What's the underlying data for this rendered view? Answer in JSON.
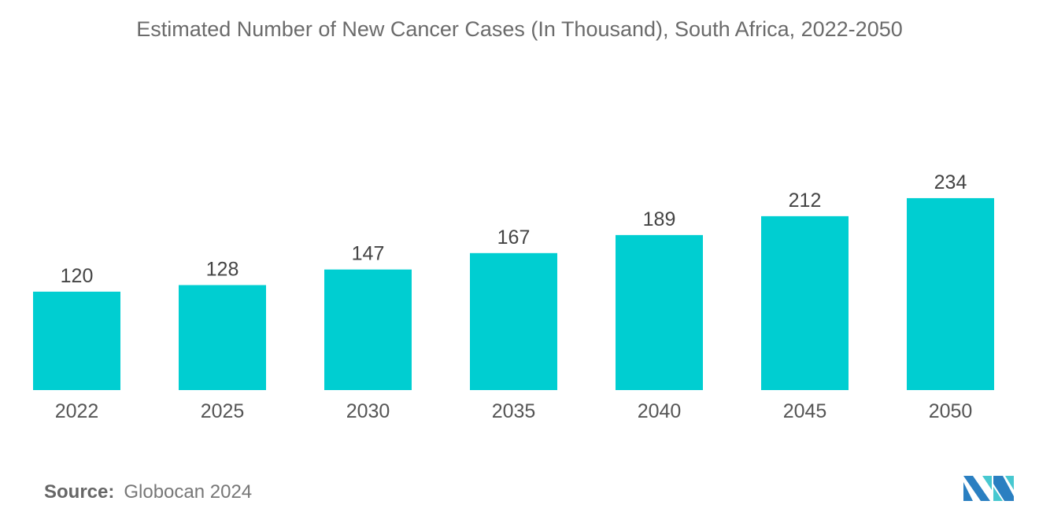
{
  "chart_data": {
    "type": "bar",
    "title": "Estimated Number of New Cancer Cases (In Thousand), South Africa, 2022-2050",
    "categories": [
      "2022",
      "2025",
      "2030",
      "2035",
      "2040",
      "2045",
      "2050"
    ],
    "values": [
      120,
      128,
      147,
      167,
      189,
      212,
      234
    ],
    "xlabel": "",
    "ylabel": "",
    "ylim": [
      0,
      240
    ],
    "grid": false,
    "bar_color": "#00CED1"
  },
  "source": {
    "label": "Source:",
    "text": "Globocan 2024"
  },
  "logo": {
    "name": "mordor-intelligence-logo-icon"
  }
}
